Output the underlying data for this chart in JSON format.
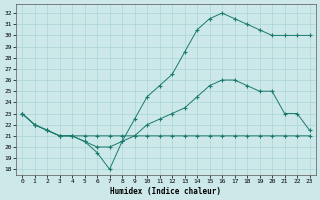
{
  "xlabel": "Humidex (Indice chaleur)",
  "bg_color": "#cce8e8",
  "line_color": "#1a7a6e",
  "xlim": [
    -0.5,
    23.5
  ],
  "ylim": [
    17.5,
    32.8
  ],
  "xticks": [
    0,
    1,
    2,
    3,
    4,
    5,
    6,
    7,
    8,
    9,
    10,
    11,
    12,
    13,
    14,
    15,
    16,
    17,
    18,
    19,
    20,
    21,
    22,
    23
  ],
  "yticks": [
    18,
    19,
    20,
    21,
    22,
    23,
    24,
    25,
    26,
    27,
    28,
    29,
    30,
    31,
    32
  ],
  "line_top_x": [
    0,
    1,
    2,
    3,
    4,
    5,
    6,
    7,
    8,
    9,
    10,
    11,
    12,
    13,
    14,
    15,
    16,
    17,
    18,
    19,
    20,
    21,
    22,
    23
  ],
  "line_top_y": [
    23,
    22,
    21.5,
    21,
    21,
    20.5,
    19.5,
    18.0,
    20.5,
    22.5,
    24.5,
    25.5,
    26.5,
    28.5,
    30.5,
    31.5,
    32,
    31.5,
    31,
    30.5,
    30,
    30,
    30,
    30
  ],
  "line_mid_x": [
    0,
    1,
    2,
    3,
    4,
    5,
    6,
    7,
    8,
    9,
    10,
    11,
    12,
    13,
    14,
    15,
    16,
    17,
    18,
    19,
    20,
    21,
    22,
    23
  ],
  "line_mid_y": [
    23,
    22,
    21.5,
    21,
    21,
    20.5,
    20,
    20,
    20.5,
    21,
    22,
    22.5,
    23,
    23.5,
    24.5,
    25.5,
    26,
    26,
    25.5,
    25,
    25,
    23,
    23,
    21.5
  ],
  "line_bot_x": [
    0,
    1,
    2,
    3,
    4,
    5,
    6,
    7,
    8,
    9,
    10,
    11,
    12,
    13,
    14,
    15,
    16,
    17,
    18,
    19,
    20,
    21,
    22,
    23
  ],
  "line_bot_y": [
    23,
    22,
    21.5,
    21,
    21,
    21,
    21,
    21,
    21,
    21,
    21,
    21,
    21,
    21,
    21,
    21,
    21,
    21,
    21,
    21,
    21,
    21,
    21,
    21
  ],
  "grid_color": "#aad4d4",
  "figsize": [
    3.2,
    2.0
  ],
  "dpi": 100
}
